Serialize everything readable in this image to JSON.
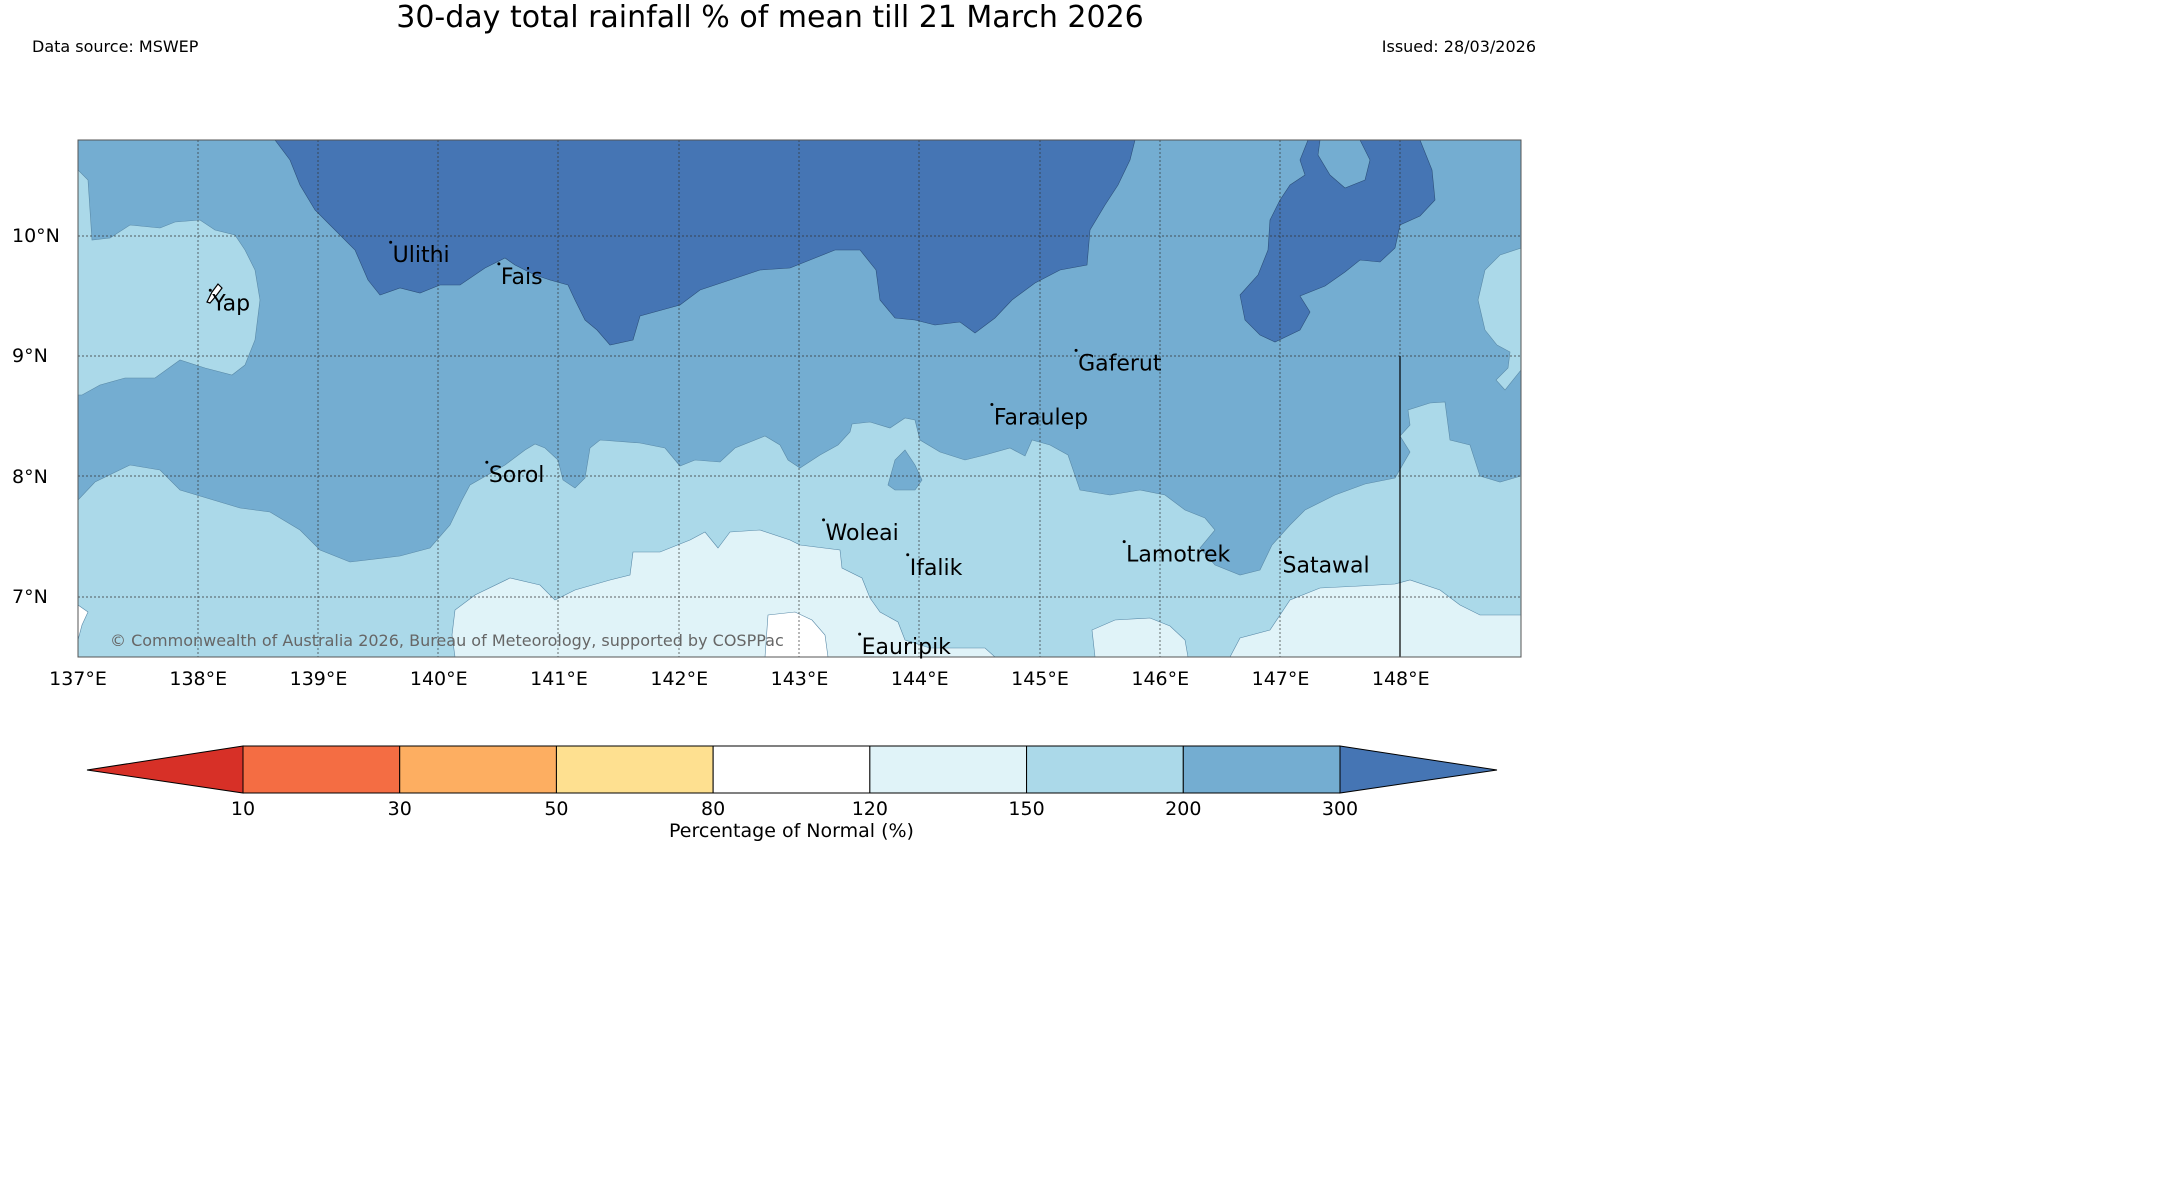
{
  "title": "30-day total rainfall % of mean till 21 March 2026",
  "data_source": "Data source: MSWEP",
  "issued": "Issued: 28/03/2026",
  "copyright": "© Commonwealth of Australia 2026, Bureau of Meteorology, supported by COSPPac",
  "map": {
    "lon_range": [
      137.0,
      149.0
    ],
    "lat_range": [
      6.5,
      10.8
    ],
    "lon_ticks": [
      "137°E",
      "138°E",
      "139°E",
      "140°E",
      "141°E",
      "142°E",
      "143°E",
      "144°E",
      "145°E",
      "146°E",
      "147°E",
      "148°E"
    ],
    "lat_ticks": [
      "7°N",
      "8°N",
      "9°N",
      "10°N"
    ],
    "places": [
      {
        "name": "Ulithi",
        "lon": 139.6,
        "lat": 9.95
      },
      {
        "name": "Fais",
        "lon": 140.5,
        "lat": 9.77
      },
      {
        "name": "Yap",
        "lon": 138.1,
        "lat": 9.55
      },
      {
        "name": "Gaferut",
        "lon": 145.3,
        "lat": 9.05
      },
      {
        "name": "Faraulep",
        "lon": 144.6,
        "lat": 8.6
      },
      {
        "name": "Sorol",
        "lon": 140.4,
        "lat": 8.12
      },
      {
        "name": "Woleai",
        "lon": 143.2,
        "lat": 7.64
      },
      {
        "name": "Ifalik",
        "lon": 143.9,
        "lat": 7.35
      },
      {
        "name": "Lamotrek",
        "lon": 145.7,
        "lat": 7.46
      },
      {
        "name": "Satawal",
        "lon": 147.0,
        "lat": 7.37
      },
      {
        "name": "Eauripik",
        "lon": 143.5,
        "lat": 6.69
      }
    ]
  },
  "colorbar": {
    "label": "Percentage of Normal (%)",
    "ticks": [
      "10",
      "30",
      "50",
      "80",
      "120",
      "150",
      "200",
      "300"
    ],
    "colors": [
      "#d73027",
      "#f46d43",
      "#fdae61",
      "#fee090",
      "#ffffff",
      "#e0f3f8",
      "#abd9e9",
      "#74add1",
      "#4575b4"
    ]
  }
}
